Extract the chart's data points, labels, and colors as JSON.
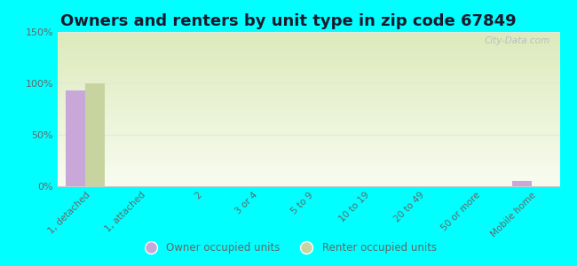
{
  "title": "Owners and renters by unit type in zip code 67849",
  "categories": [
    "1, detached",
    "1, attached",
    "2",
    "3 or 4",
    "5 to 9",
    "10 to 19",
    "20 to 49",
    "50 or more",
    "Mobile home"
  ],
  "owner_values": [
    93,
    0,
    0,
    0,
    0,
    0,
    0,
    0,
    5
  ],
  "renter_values": [
    100,
    0,
    0,
    0,
    0,
    0,
    0,
    0,
    0
  ],
  "owner_color": "#c8a8d8",
  "renter_color": "#c8d4a0",
  "background_color": "#00ffff",
  "grad_color_top": "#f0f5e0",
  "grad_color_bottom": "#e0eccc",
  "ylim": [
    0,
    150
  ],
  "yticks": [
    0,
    50,
    100,
    150
  ],
  "ytick_labels": [
    "0%",
    "50%",
    "100%",
    "150%"
  ],
  "watermark": "City-Data.com",
  "legend_owner": "Owner occupied units",
  "legend_renter": "Renter occupied units",
  "title_fontsize": 13,
  "bar_width": 0.35,
  "grid_color": "#e8e8f0",
  "tick_label_color": "#666666"
}
